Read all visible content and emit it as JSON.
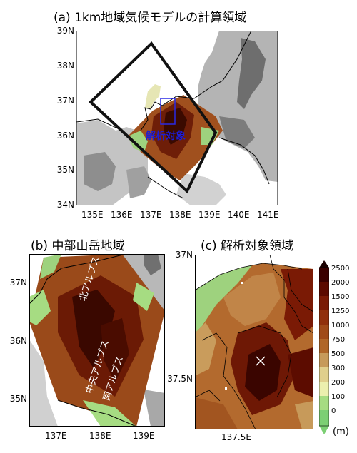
{
  "panel_a": {
    "title": "(a) 1km地域気候モデルの計算領域",
    "lat_labels": [
      "39N",
      "38N",
      "37N",
      "36N",
      "35N",
      "34N"
    ],
    "lon_labels": [
      "135E",
      "136E",
      "137E",
      "138E",
      "139E",
      "140E",
      "141E"
    ],
    "target_label": "解析対象"
  },
  "panel_b": {
    "title": "(b) 中部山岳地域",
    "lat_labels": [
      "37N",
      "36N",
      "35N"
    ],
    "lon_labels": [
      "137E",
      "138E",
      "139E"
    ],
    "range_labels": [
      "北アルプス",
      "中央アルプス",
      "南アルプス"
    ]
  },
  "panel_c": {
    "title": "(c) 解析対象領域",
    "lat_labels": [
      "37N",
      "37.5N"
    ],
    "lon_labels": [
      "137.5E"
    ]
  },
  "colorbar": {
    "levels": [
      "2500",
      "2000",
      "1500",
      "1250",
      "1000",
      "750",
      "500",
      "300",
      "200",
      "100",
      "0"
    ],
    "unit": "(m)",
    "colors": [
      "#1a0000",
      "#3a0000",
      "#5c0a00",
      "#7a1a05",
      "#91300c",
      "#a04a18",
      "#b06628",
      "#c79a5a",
      "#e0cf8c",
      "#ecefae",
      "#a6dc82",
      "#7ccf74"
    ]
  }
}
